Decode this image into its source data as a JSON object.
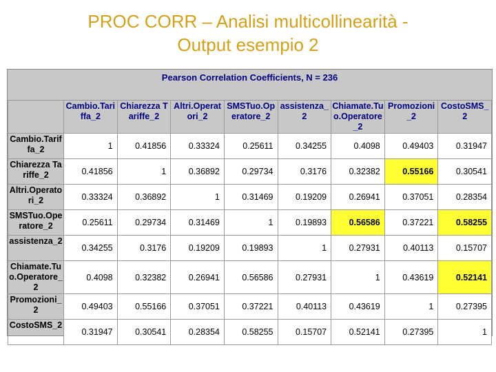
{
  "title": [
    "PROC CORR – Analisi multicollinearità -",
    "Output esempio 2"
  ],
  "table": {
    "caption": "Pearson Correlation Coefficients, N = 236",
    "columns": [
      "Cambio.Tariffa_2",
      "Chiarezza Tariffe_2",
      "Altri.Operatori_2",
      "SMSTuo.Operatore_2",
      "assistenza_2",
      "Chiamate.Tuo.Operatore_2",
      "Promozioni_2",
      "CostoSMS_2"
    ],
    "row_labels": [
      "Cambio.Tariffa_2",
      "Chiarezza Tariffe_2",
      "Altri.Operatori_2",
      "SMSTuo.Operatore_2",
      "assistenza_2",
      "Chiamate.Tuo.Operatore_2",
      "Promozioni_2",
      "CostoSMS_2"
    ],
    "rows": [
      [
        1,
        0.41856,
        0.33324,
        0.25611,
        0.34255,
        0.4098,
        0.49403,
        0.31947
      ],
      [
        0.41856,
        1,
        0.36892,
        0.29734,
        0.3176,
        0.32382,
        0.55166,
        0.30541
      ],
      [
        0.33324,
        0.36892,
        1,
        0.31469,
        0.19209,
        0.26941,
        0.37051,
        0.28354
      ],
      [
        0.25611,
        0.29734,
        0.31469,
        1,
        0.19893,
        0.56586,
        0.37221,
        0.58255
      ],
      [
        0.34255,
        0.3176,
        0.19209,
        0.19893,
        1,
        0.27931,
        0.40113,
        0.15707
      ],
      [
        0.4098,
        0.32382,
        0.26941,
        0.56586,
        0.27931,
        1,
        0.43619,
        0.52141
      ],
      [
        0.49403,
        0.55166,
        0.37051,
        0.37221,
        0.40113,
        0.43619,
        1,
        0.27395
      ],
      [
        0.31947,
        0.30541,
        0.28354,
        0.58255,
        0.15707,
        0.52141,
        0.27395,
        1
      ]
    ],
    "highlighted": [
      [
        1,
        6
      ],
      [
        3,
        5
      ],
      [
        3,
        7
      ],
      [
        5,
        7
      ]
    ],
    "highlight_color": "#ffff33"
  }
}
